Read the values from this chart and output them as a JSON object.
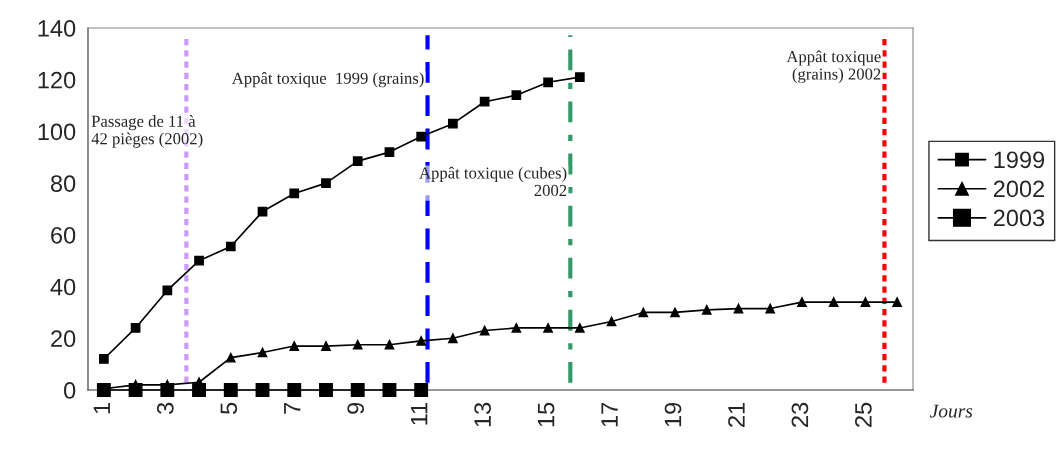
{
  "chart_data": {
    "type": "line",
    "xlabel": "Jours",
    "x": [
      1,
      2,
      3,
      4,
      5,
      6,
      7,
      8,
      9,
      10,
      11,
      12,
      13,
      14,
      15,
      16,
      17,
      18,
      19,
      20,
      21,
      22,
      23,
      24,
      25,
      26
    ],
    "xlim": [
      0.5,
      26.5
    ],
    "xticks": [
      1,
      3,
      5,
      7,
      9,
      11,
      13,
      15,
      17,
      19,
      21,
      23,
      25
    ],
    "ylim": [
      0,
      140
    ],
    "yticks": [
      0,
      20,
      40,
      60,
      80,
      100,
      120,
      140
    ],
    "series": [
      {
        "name": "1999",
        "color": "#000000",
        "marker": "square",
        "values": [
          12,
          24,
          38.5,
          50,
          55.5,
          69,
          76,
          80,
          88.5,
          92,
          98,
          103,
          111.5,
          114,
          119,
          121,
          null,
          null,
          null,
          null,
          null,
          null,
          null,
          null,
          null,
          null
        ]
      },
      {
        "name": "2002",
        "color": "#000000",
        "marker": "triangle",
        "values": [
          0.5,
          2,
          2,
          3,
          12.5,
          14.5,
          17,
          17,
          17.5,
          17.5,
          19,
          20,
          23,
          24,
          24,
          24,
          26.5,
          30,
          30,
          31,
          31.5,
          31.5,
          34,
          34,
          34,
          34
        ]
      },
      {
        "name": "2003",
        "color": "#000000",
        "marker": "square",
        "values": [
          0,
          0,
          0,
          0,
          0,
          0,
          0,
          0,
          0,
          0,
          0,
          null,
          null,
          null,
          null,
          null,
          null,
          null,
          null,
          null,
          null,
          null,
          null,
          null,
          null,
          null
        ]
      }
    ],
    "ref_lines": [
      {
        "axis": "x",
        "value": 3.6,
        "color": "#cc99ff",
        "line_style": "dotted"
      },
      {
        "axis": "x",
        "value": 11.2,
        "color": "#0000ff",
        "line_style": "dashed"
      },
      {
        "axis": "x",
        "value": 15.7,
        "color": "#339966",
        "line_style": "dashdot"
      },
      {
        "axis": "x",
        "value": 25.6,
        "color": "#ff0000",
        "line_style": "dotted"
      }
    ],
    "annotations": [
      {
        "text": "Passage de 11 à\n42 pièges (2002)",
        "x": 3.6,
        "y": 100
      },
      {
        "text": "Appât toxique  1999 (grains)",
        "x": 11.2,
        "y": 120
      },
      {
        "text": "Appât toxique (cubes)\n2002",
        "x": 15.7,
        "y": 80
      },
      {
        "text": "Appât toxique\n(grains) 2002",
        "x": 25.6,
        "y": 125
      }
    ],
    "grid": false,
    "legend": "right"
  }
}
